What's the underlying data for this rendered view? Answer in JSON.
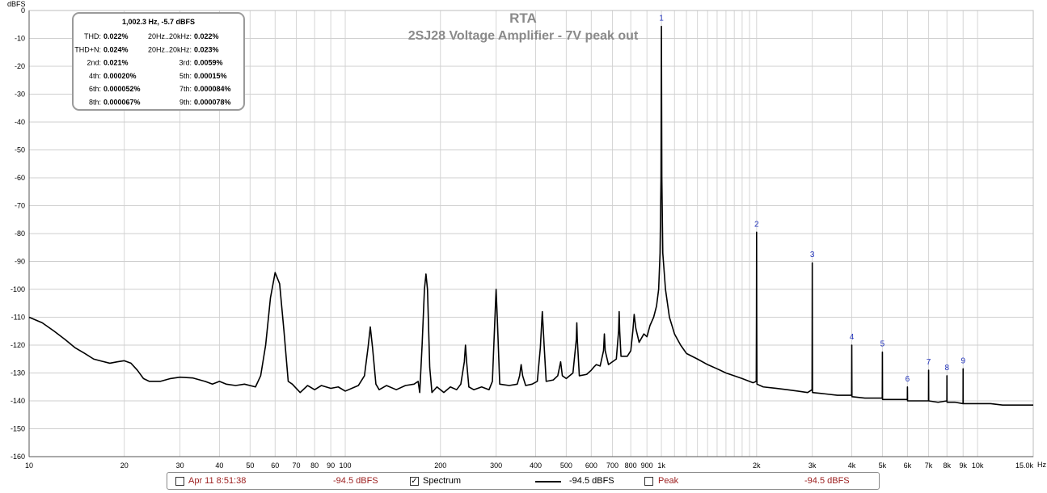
{
  "chart_data": {
    "type": "line",
    "title": "RTA",
    "subtitle": "2SJ28 Voltage Amplifier - 7V peak out",
    "ylabel": "dBFS",
    "xunit": "Hz",
    "xscale": "log",
    "xlim": [
      10,
      15000
    ],
    "ylim": [
      -160,
      0
    ],
    "grid": true,
    "yticks": [
      "0",
      "-10",
      "-20",
      "-30",
      "-40",
      "-50",
      "-60",
      "-70",
      "-80",
      "-90",
      "-100",
      "-110",
      "-120",
      "-130",
      "-140",
      "-150",
      "-160"
    ],
    "xticks": [
      {
        "v": 10,
        "label": "10"
      },
      {
        "v": 20,
        "label": "20"
      },
      {
        "v": 30,
        "label": "30"
      },
      {
        "v": 40,
        "label": "40"
      },
      {
        "v": 50,
        "label": "50"
      },
      {
        "v": 60,
        "label": "60"
      },
      {
        "v": 70,
        "label": "70"
      },
      {
        "v": 80,
        "label": "80"
      },
      {
        "v": 90,
        "label": "90"
      },
      {
        "v": 100,
        "label": "100"
      },
      {
        "v": 200,
        "label": "200"
      },
      {
        "v": 300,
        "label": "300"
      },
      {
        "v": 400,
        "label": "400"
      },
      {
        "v": 500,
        "label": "500"
      },
      {
        "v": 600,
        "label": "600"
      },
      {
        "v": 700,
        "label": "700"
      },
      {
        "v": 800,
        "label": "800"
      },
      {
        "v": 900,
        "label": "900"
      },
      {
        "v": 1000,
        "label": "1k"
      },
      {
        "v": 2000,
        "label": "2k"
      },
      {
        "v": 3000,
        "label": "3k"
      },
      {
        "v": 4000,
        "label": "4k"
      },
      {
        "v": 5000,
        "label": "5k"
      },
      {
        "v": 6000,
        "label": "6k"
      },
      {
        "v": 7000,
        "label": "7k"
      },
      {
        "v": 8000,
        "label": "8k"
      },
      {
        "v": 9000,
        "label": "9k"
      },
      {
        "v": 10000,
        "label": "10k"
      },
      {
        "v": 15000,
        "label": "15.0k"
      }
    ],
    "series": [
      {
        "color": "#000000",
        "points": [
          [
            10,
            -110
          ],
          [
            11,
            -112
          ],
          [
            12,
            -115
          ],
          [
            13,
            -118
          ],
          [
            14,
            -121
          ],
          [
            15,
            -123
          ],
          [
            16,
            -125
          ],
          [
            17,
            -125.8
          ],
          [
            18,
            -126.5
          ],
          [
            19,
            -126
          ],
          [
            20,
            -125.6
          ],
          [
            21,
            -126.5
          ],
          [
            22,
            -129
          ],
          [
            23,
            -132
          ],
          [
            24,
            -133
          ],
          [
            26,
            -133
          ],
          [
            28,
            -132
          ],
          [
            30,
            -131.5
          ],
          [
            33,
            -131.8
          ],
          [
            36,
            -133
          ],
          [
            38,
            -134
          ],
          [
            40,
            -133
          ],
          [
            42,
            -134
          ],
          [
            45,
            -134.5
          ],
          [
            48,
            -134
          ],
          [
            52,
            -135
          ],
          [
            54,
            -131
          ],
          [
            56,
            -120
          ],
          [
            58,
            -103
          ],
          [
            60,
            -94
          ],
          [
            62,
            -98
          ],
          [
            64,
            -115
          ],
          [
            66,
            -133
          ],
          [
            68,
            -134
          ],
          [
            72,
            -137
          ],
          [
            76,
            -134.5
          ],
          [
            80,
            -136
          ],
          [
            84,
            -134.5
          ],
          [
            90,
            -135.5
          ],
          [
            95,
            -135
          ],
          [
            100,
            -136.5
          ],
          [
            110,
            -134.5
          ],
          [
            115,
            -131
          ],
          [
            118,
            -121
          ],
          [
            120,
            -113.5
          ],
          [
            122,
            -121
          ],
          [
            125,
            -134
          ],
          [
            128,
            -136
          ],
          [
            135,
            -134.5
          ],
          [
            145,
            -136
          ],
          [
            155,
            -134.5
          ],
          [
            165,
            -134
          ],
          [
            170,
            -133
          ],
          [
            172,
            -137
          ],
          [
            175,
            -120
          ],
          [
            178,
            -100
          ],
          [
            180,
            -94.5
          ],
          [
            182,
            -100
          ],
          [
            185,
            -128
          ],
          [
            188,
            -137
          ],
          [
            195,
            -135
          ],
          [
            205,
            -137
          ],
          [
            215,
            -135
          ],
          [
            225,
            -136
          ],
          [
            232,
            -134
          ],
          [
            238,
            -126
          ],
          [
            240,
            -120
          ],
          [
            242,
            -126
          ],
          [
            246,
            -135
          ],
          [
            255,
            -136
          ],
          [
            270,
            -135
          ],
          [
            285,
            -136
          ],
          [
            292,
            -133
          ],
          [
            297,
            -112
          ],
          [
            300,
            -100
          ],
          [
            303,
            -112
          ],
          [
            308,
            -134
          ],
          [
            330,
            -134.5
          ],
          [
            350,
            -134
          ],
          [
            356,
            -131
          ],
          [
            360,
            -127
          ],
          [
            364,
            -131
          ],
          [
            372,
            -134.5
          ],
          [
            390,
            -134
          ],
          [
            405,
            -133
          ],
          [
            414,
            -121
          ],
          [
            420,
            -108
          ],
          [
            426,
            -121
          ],
          [
            432,
            -133
          ],
          [
            455,
            -132.5
          ],
          [
            470,
            -131
          ],
          [
            480,
            -126
          ],
          [
            486,
            -131
          ],
          [
            500,
            -132
          ],
          [
            525,
            -130
          ],
          [
            538,
            -118
          ],
          [
            540,
            -112
          ],
          [
            542,
            -118
          ],
          [
            550,
            -131
          ],
          [
            580,
            -130.5
          ],
          [
            600,
            -129
          ],
          [
            610,
            -128
          ],
          [
            622,
            -127
          ],
          [
            640,
            -127.5
          ],
          [
            656,
            -122
          ],
          [
            660,
            -116
          ],
          [
            664,
            -122
          ],
          [
            680,
            -127
          ],
          [
            720,
            -125
          ],
          [
            732,
            -115
          ],
          [
            735,
            -108
          ],
          [
            738,
            -115
          ],
          [
            745,
            -124
          ],
          [
            780,
            -124
          ],
          [
            800,
            -122
          ],
          [
            812,
            -115
          ],
          [
            820,
            -109
          ],
          [
            830,
            -114
          ],
          [
            850,
            -119
          ],
          [
            880,
            -116
          ],
          [
            900,
            -117
          ],
          [
            920,
            -113
          ],
          [
            945,
            -110
          ],
          [
            965,
            -106
          ],
          [
            980,
            -100
          ],
          [
            990,
            -87
          ],
          [
            997,
            -60
          ],
          [
            1000,
            -5.7
          ],
          [
            1003,
            -60
          ],
          [
            1010,
            -87
          ],
          [
            1030,
            -100
          ],
          [
            1060,
            -110
          ],
          [
            1100,
            -116
          ],
          [
            1150,
            -120
          ],
          [
            1200,
            -123
          ],
          [
            1300,
            -125
          ],
          [
            1400,
            -127
          ],
          [
            1500,
            -128.5
          ],
          [
            1600,
            -130
          ],
          [
            1700,
            -131
          ],
          [
            1800,
            -132
          ],
          [
            1950,
            -133.5
          ],
          [
            1995,
            -133
          ],
          [
            1998,
            -110
          ],
          [
            2000,
            -79.5
          ],
          [
            2002,
            -110
          ],
          [
            2005,
            -134
          ],
          [
            2100,
            -135
          ],
          [
            2300,
            -135.5
          ],
          [
            2500,
            -136
          ],
          [
            2700,
            -136.5
          ],
          [
            2900,
            -137
          ],
          [
            2995,
            -136
          ],
          [
            2998,
            -110
          ],
          [
            3000,
            -90.5
          ],
          [
            3002,
            -110
          ],
          [
            3005,
            -137
          ],
          [
            3300,
            -137.5
          ],
          [
            3600,
            -138
          ],
          [
            3995,
            -138
          ],
          [
            3998,
            -128
          ],
          [
            4000,
            -120
          ],
          [
            4002,
            -128
          ],
          [
            4005,
            -138.5
          ],
          [
            4400,
            -139
          ],
          [
            4995,
            -139
          ],
          [
            4998,
            -130
          ],
          [
            5000,
            -122.5
          ],
          [
            5002,
            -130
          ],
          [
            5005,
            -139.5
          ],
          [
            5500,
            -139.5
          ],
          [
            5995,
            -139.5
          ],
          [
            6000,
            -135
          ],
          [
            6005,
            -140
          ],
          [
            6500,
            -140
          ],
          [
            6995,
            -140
          ],
          [
            6998,
            -134
          ],
          [
            7000,
            -129
          ],
          [
            7002,
            -134
          ],
          [
            7005,
            -140
          ],
          [
            7500,
            -140.5
          ],
          [
            7995,
            -140
          ],
          [
            7998,
            -136
          ],
          [
            8000,
            -131
          ],
          [
            8002,
            -136
          ],
          [
            8005,
            -140.5
          ],
          [
            8500,
            -140.5
          ],
          [
            8995,
            -141
          ],
          [
            8998,
            -134
          ],
          [
            9000,
            -128.5
          ],
          [
            9002,
            -134
          ],
          [
            9005,
            -141
          ],
          [
            10000,
            -141
          ],
          [
            11000,
            -141
          ],
          [
            12000,
            -141.5
          ],
          [
            13000,
            -141.5
          ],
          [
            14000,
            -141.5
          ],
          [
            15000,
            -141.5
          ]
        ]
      }
    ],
    "harmonic_labels": [
      {
        "label": "1",
        "f": 1000,
        "db": -5.7
      },
      {
        "label": "2",
        "f": 2000,
        "db": -79.5
      },
      {
        "label": "3",
        "f": 3000,
        "db": -90.5
      },
      {
        "label": "4",
        "f": 4000,
        "db": -120
      },
      {
        "label": "5",
        "f": 5000,
        "db": -122.5
      },
      {
        "label": "6",
        "f": 6000,
        "db": -135
      },
      {
        "label": "7",
        "f": 7000,
        "db": -129
      },
      {
        "label": "8",
        "f": 8000,
        "db": -131
      },
      {
        "label": "9",
        "f": 9000,
        "db": -128.5
      }
    ]
  },
  "info_box": {
    "header": "1,002.3 Hz, -5.7 dBFS",
    "rows": [
      {
        "l1": "THD:",
        "v1": "0.022%",
        "l2": "20Hz..20kHz:",
        "v2": "0.022%"
      },
      {
        "l1": "THD+N:",
        "v1": "0.024%",
        "l2": "20Hz..20kHz:",
        "v2": "0.023%"
      },
      {
        "l1": "2nd:",
        "v1": "0.021%",
        "l2": "3rd:",
        "v2": "0.0059%"
      },
      {
        "l1": "4th:",
        "v1": "0.00020%",
        "l2": "5th:",
        "v2": "0.00015%"
      },
      {
        "l1": "6th:",
        "v1": "0.000052%",
        "l2": "7th:",
        "v2": "0.000084%"
      },
      {
        "l1": "8th:",
        "v1": "0.000067%",
        "l2": "9th:",
        "v2": "0.000078%"
      }
    ]
  },
  "legend": {
    "item1_label": "Apr 11 8:51:38",
    "item1_value": "-94.5 dBFS",
    "item1_checked": false,
    "item2_label": "Spectrum",
    "item2_value": "-94.5 dBFS",
    "item2_checked": true,
    "item3_label": "Peak",
    "item3_value": "-94.5 dBFS",
    "item3_checked": false,
    "check_glyph": "✓"
  }
}
